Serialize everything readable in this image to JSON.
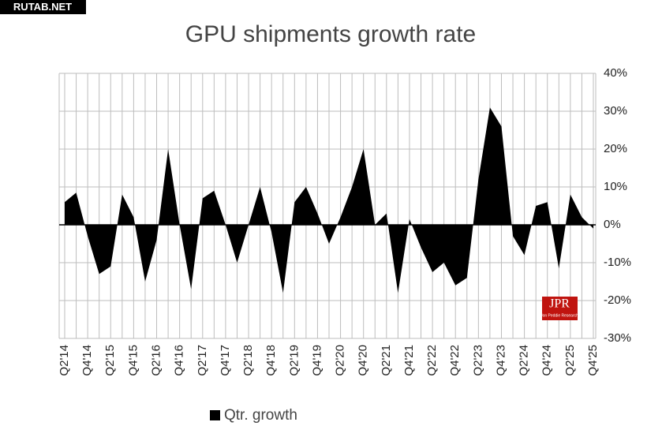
{
  "watermark": "RUTAB.NET",
  "logo": {
    "title": "JPR",
    "subtitle": "Jon Peddie Research"
  },
  "chart_data": {
    "type": "area",
    "title": "GPU shipments growth rate",
    "categories": [
      "Q2'14",
      null,
      "Q4'14",
      null,
      "Q2'15",
      null,
      "Q4'15",
      null,
      "Q2'16",
      null,
      "Q4'16",
      null,
      "Q2'17",
      null,
      "Q4'17",
      null,
      "Q2'18",
      null,
      "Q4'18",
      null,
      "Q2'19",
      null,
      "Q4'19",
      null,
      "Q2'20",
      null,
      "Q4'20",
      null,
      "Q2'21",
      null,
      "Q4'21",
      null,
      "Q2'22",
      null,
      "Q4'22",
      null,
      "Q2'23",
      null,
      "Q4'23",
      null,
      "Q2'24",
      null,
      "Q4'24",
      null,
      "Q2'25",
      null,
      "Q4'25"
    ],
    "series": [
      {
        "name": "Qtr. growth",
        "color": "#000000",
        "values": [
          6,
          8.5,
          -3,
          -13,
          -11,
          8,
          2,
          -15,
          -4,
          20,
          0,
          -17,
          7,
          9,
          0,
          -10,
          0,
          10,
          -2,
          -18,
          6,
          10,
          3,
          -5,
          2,
          10,
          20,
          0,
          3,
          -18,
          1.5,
          -6,
          -12.5,
          -10,
          -16,
          -14,
          12,
          31,
          26,
          -3,
          -8,
          5,
          6,
          -11.5,
          8,
          2,
          -1
        ]
      }
    ],
    "ylim": [
      -30,
      40
    ],
    "yticks": [
      {
        "value": -30,
        "label": "-30%"
      },
      {
        "value": -20,
        "label": "-20%"
      },
      {
        "value": -10,
        "label": "-10%"
      },
      {
        "value": 0,
        "label": "0%"
      },
      {
        "value": 10,
        "label": "10%"
      },
      {
        "value": 20,
        "label": "20%"
      },
      {
        "value": 30,
        "label": "30%"
      },
      {
        "value": 40,
        "label": "40%"
      }
    ],
    "grid": true,
    "legend": "bottom"
  }
}
